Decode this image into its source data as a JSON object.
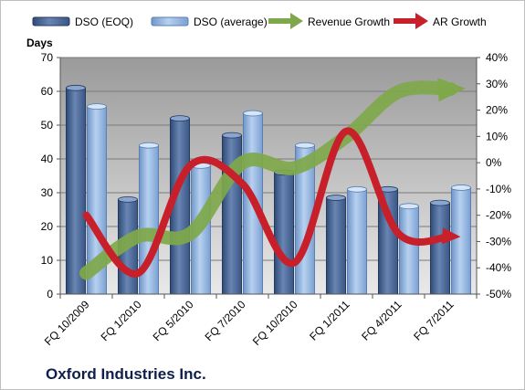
{
  "chart_data": {
    "type": "bar",
    "subtitle": "Oxford Industries Inc.",
    "categories": [
      "FQ 10/2009",
      "FQ 1/2010",
      "FQ 5/2010",
      "FQ 7/2010",
      "FQ 10/2010",
      "FQ 1/2011",
      "FQ 4/2011",
      "FQ 7/2011"
    ],
    "ylabel": "Days",
    "ylim": [
      0,
      70
    ],
    "y_ticks": [
      "0",
      "10",
      "20",
      "30",
      "40",
      "50",
      "60",
      "70"
    ],
    "y2lim": [
      -50,
      40
    ],
    "y2_ticks": [
      "-50%",
      "-40%",
      "-30%",
      "-20%",
      "-10%",
      "0%",
      "10%",
      "20%",
      "30%",
      "40%"
    ],
    "grid": true,
    "legend_position": "top",
    "series": [
      {
        "name": "DSO (EOQ)",
        "kind": "bar",
        "color": "#4f6d99",
        "values": [
          61,
          28,
          52,
          47,
          36,
          28.5,
          31,
          27
        ]
      },
      {
        "name": "DSO (average)",
        "kind": "bar",
        "color": "#8fb4e3",
        "values": [
          55.5,
          44,
          38,
          53.5,
          44,
          31,
          26,
          31.5
        ]
      },
      {
        "name": "Revenue Growth",
        "kind": "line",
        "axis": "secondary",
        "color": "#7fa84a",
        "values": [
          -42,
          -28,
          -27,
          0,
          -2,
          10,
          27,
          28
        ]
      },
      {
        "name": "AR Growth",
        "kind": "line",
        "axis": "secondary",
        "color": "#c8202a",
        "values": [
          -20,
          -42,
          -1,
          -8,
          -38,
          12,
          -27,
          -28
        ]
      }
    ]
  }
}
